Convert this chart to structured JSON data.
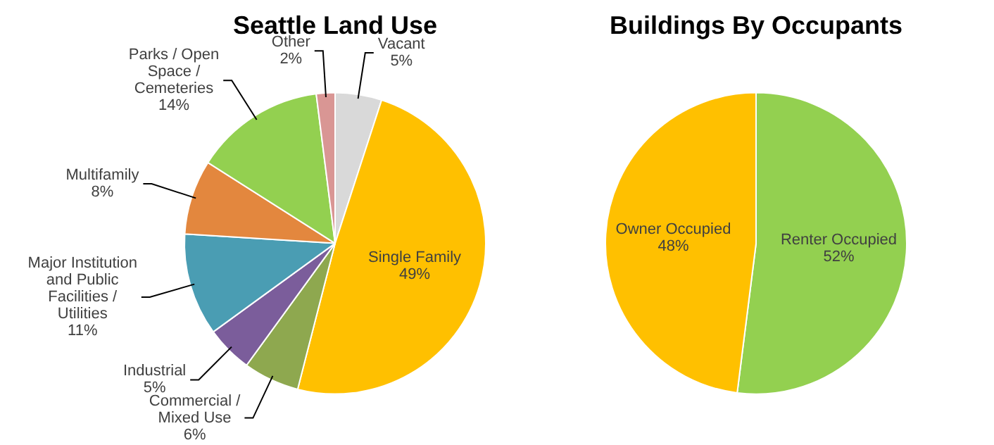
{
  "chart_data": [
    {
      "type": "pie",
      "title": "Seattle Land Use",
      "categories": [
        "Vacant",
        "Single Family",
        "Commercial / Mixed Use",
        "Industrial",
        "Major Institution and Public Facilities / Utilities",
        "Multifamily",
        "Parks / Open Space / Cemeteries",
        "Other"
      ],
      "values": [
        5,
        49,
        6,
        5,
        11,
        8,
        14,
        2
      ],
      "value_labels": [
        "5%",
        "49%",
        "6%",
        "5%",
        "11%",
        "8%",
        "14%",
        "2%"
      ],
      "colors": [
        "#d9d9d9",
        "#ffc000",
        "#8ea84f",
        "#7b5d9b",
        "#4a9db3",
        "#e3873e",
        "#93d050",
        "#d99694"
      ]
    },
    {
      "type": "pie",
      "title": "Buildings By Occupants",
      "categories": [
        "Renter Occupied",
        "Owner Occupied"
      ],
      "values": [
        52,
        48
      ],
      "value_labels": [
        "52%",
        "48%"
      ],
      "colors": [
        "#93d050",
        "#ffc000"
      ]
    }
  ]
}
